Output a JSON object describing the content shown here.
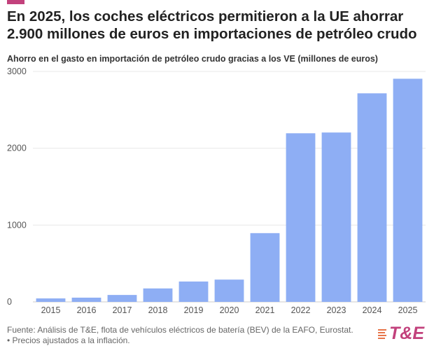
{
  "title": "En 2025, los coches eléctricos permitieron a la UE ahorrar 2.900 millones de euros en importaciones de petróleo crudo",
  "source": "Fuente: Análisis de T&E, flota de vehículos eléctricos de batería (BEV) de la EAFO, Eurostat. • Precios ajustados a la inflación.",
  "logo": "T&E",
  "colors": {
    "bar": "#8eaef4",
    "accent": "#c2417c",
    "logo_stripes": "#e7754a"
  },
  "chart_data": {
    "type": "bar",
    "title": "Ahorro en el gasto en importación de petróleo crudo gracias a los VE (millones de euros)",
    "xlabel": "",
    "ylabel": "",
    "categories": [
      "2015",
      "2016",
      "2017",
      "2018",
      "2019",
      "2020",
      "2021",
      "2022",
      "2023",
      "2024",
      "2025"
    ],
    "values": [
      45,
      55,
      90,
      175,
      265,
      290,
      895,
      2195,
      2205,
      2715,
      2905
    ],
    "ylim": [
      0,
      3000
    ],
    "yticks": [
      "0",
      "1000",
      "2000",
      "3000"
    ],
    "grid": true,
    "legend": "none"
  }
}
